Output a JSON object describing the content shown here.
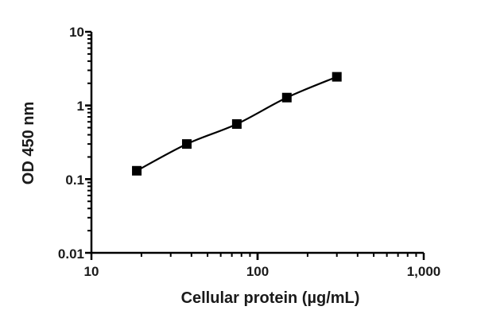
{
  "chart_data": {
    "type": "scatter",
    "title": "",
    "xlabel": "Cellular protein (µg/mL)",
    "ylabel": "OD 450 nm",
    "xscale": "log",
    "yscale": "log",
    "xlim": [
      10,
      1000
    ],
    "ylim": [
      0.01,
      10
    ],
    "x_ticks": [
      "10",
      "100",
      "1,000"
    ],
    "y_ticks": [
      "0.01",
      "0.1",
      "1",
      "10"
    ],
    "grid": false,
    "legend": null,
    "series": [
      {
        "name": "OD 450 nm",
        "marker": "square",
        "fit_line": true,
        "x": [
          18.75,
          37.5,
          75,
          150,
          300
        ],
        "y": [
          0.13,
          0.3,
          0.56,
          1.28,
          2.45
        ]
      }
    ]
  },
  "axes": {
    "x_label": "Cellular protein (µg/mL)",
    "y_label": "OD 450 nm",
    "x_tick_labels": [
      "10",
      "100",
      "1,000"
    ],
    "y_tick_labels": [
      "10",
      "1",
      "0.1",
      "0.01"
    ]
  },
  "colors": {
    "ink": "#000000",
    "background": "#ffffff"
  }
}
